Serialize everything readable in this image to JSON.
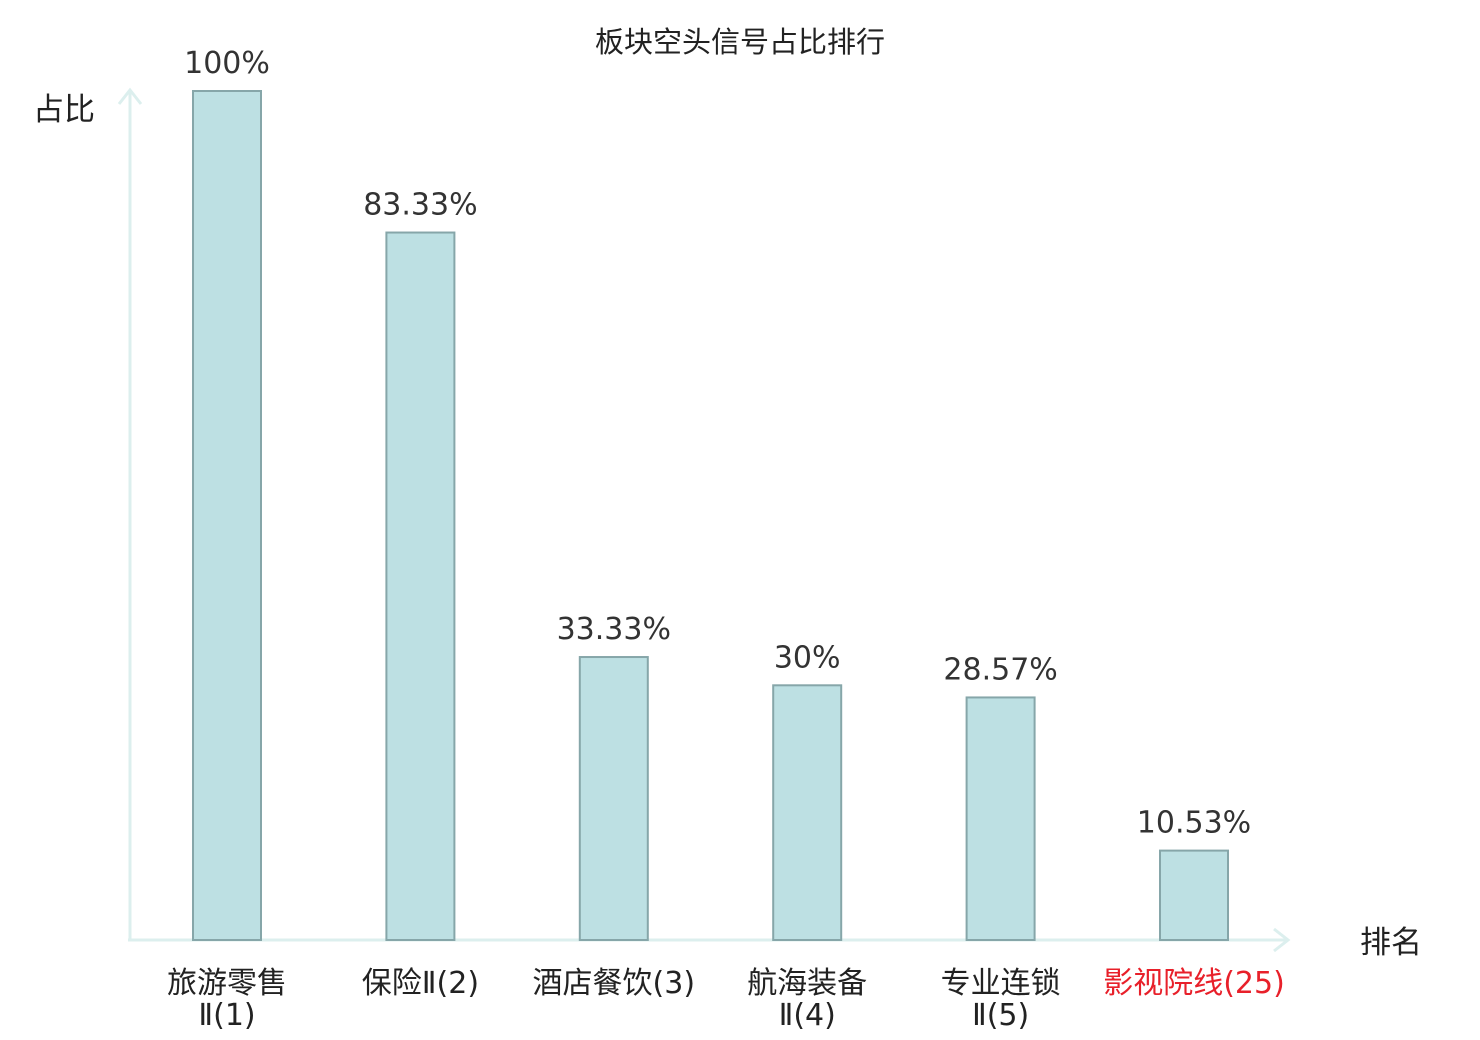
{
  "chart_data": {
    "type": "bar",
    "title": "板块空头信号占比排行",
    "ylabel": "占比",
    "xlabel": "排名",
    "ylim": [
      0,
      100
    ],
    "grid": false,
    "categories": [
      {
        "line1": "旅游零售",
        "line2": "Ⅱ(1)",
        "highlight": false
      },
      {
        "line1": "保险Ⅱ(2)",
        "line2": "",
        "highlight": false
      },
      {
        "line1": "酒店餐饮(3)",
        "line2": "",
        "highlight": false
      },
      {
        "line1": "航海装备",
        "line2": "Ⅱ(4)",
        "highlight": false
      },
      {
        "line1": "专业连锁",
        "line2": "Ⅱ(5)",
        "highlight": false
      },
      {
        "line1": "影视院线(25)",
        "line2": "",
        "highlight": true
      }
    ],
    "values": [
      100,
      83.33,
      33.33,
      30,
      28.57,
      10.53
    ],
    "value_labels": [
      "100%",
      "83.33%",
      "33.33%",
      "30%",
      "28.57%",
      "10.53%"
    ],
    "colors": {
      "bar_fill": "#bde0e3",
      "bar_stroke": "#86a6a9",
      "axis": "#dcefee",
      "highlight": "#e8202a"
    }
  }
}
